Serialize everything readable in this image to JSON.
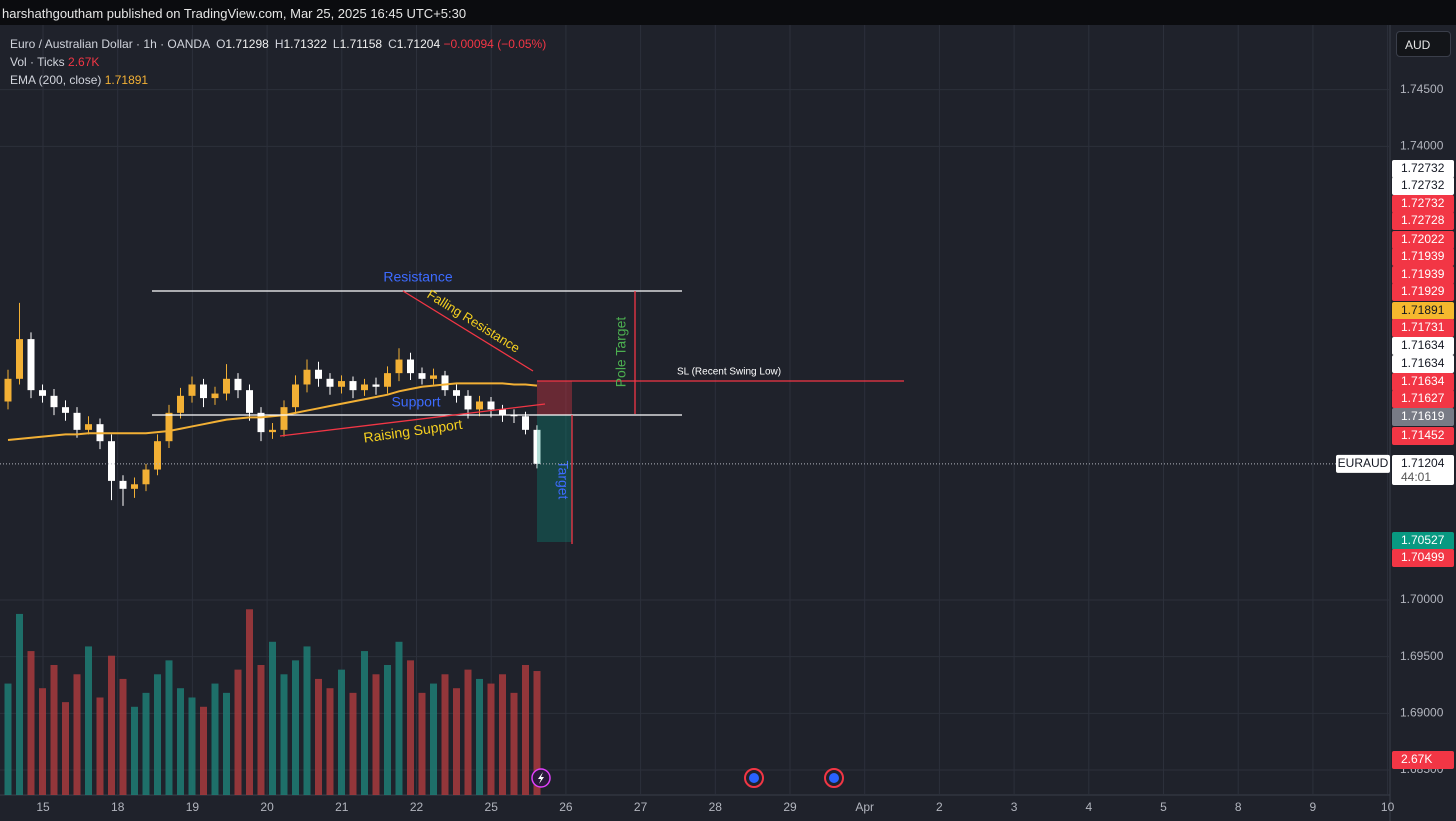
{
  "header": {
    "text": "harshathgoutham published on TradingView.com, Mar 25, 2025 16:45 UTC+5:30"
  },
  "currency_button": "AUD",
  "chart_data": {
    "type": "candlestick",
    "title": "Euro / Australian Dollar · 1h · OANDA",
    "ohlc_legend": [
      {
        "key": "O",
        "value": "1.71298"
      },
      {
        "key": "H",
        "value": "1.71322"
      },
      {
        "key": "L",
        "value": "1.71158"
      },
      {
        "key": "C",
        "value": "1.71204"
      }
    ],
    "change": "−0.00094 (−0.05%)",
    "symbol_tag": "EURAUD",
    "countdown": "44:01",
    "categories": [
      "15",
      "18",
      "19",
      "20",
      "21",
      "22",
      "25",
      "26",
      "27",
      "28",
      "29",
      "Apr",
      "2",
      "3",
      "4",
      "5",
      "8",
      "9",
      "10"
    ],
    "up_color": "#f2b035",
    "down_color": "#ffffff",
    "open": [
      1.7175,
      1.7195,
      1.723,
      1.7185,
      1.718,
      1.717,
      1.7165,
      1.715,
      1.7155,
      1.714,
      1.7105,
      1.7098,
      1.7102,
      1.7115,
      1.714,
      1.7165,
      1.718,
      1.719,
      1.7178,
      1.7182,
      1.7195,
      1.7185,
      1.7165,
      1.7148,
      1.715,
      1.717,
      1.719,
      1.7203,
      1.7195,
      1.7188,
      1.7193,
      1.7185,
      1.719,
      1.7188,
      1.72,
      1.7212,
      1.72,
      1.7195,
      1.7198,
      1.7185,
      1.718,
      1.7168,
      1.7175,
      1.7168,
      1.7163,
      1.7162,
      1.715
    ],
    "high": [
      1.7203,
      1.7262,
      1.7236,
      1.719,
      1.7186,
      1.7176,
      1.717,
      1.7162,
      1.716,
      1.7146,
      1.711,
      1.7108,
      1.712,
      1.7146,
      1.7172,
      1.7187,
      1.7197,
      1.7195,
      1.7188,
      1.7208,
      1.72,
      1.719,
      1.717,
      1.7156,
      1.7176,
      1.7198,
      1.7212,
      1.721,
      1.72,
      1.7198,
      1.7197,
      1.7195,
      1.7196,
      1.7206,
      1.7222,
      1.7218,
      1.7205,
      1.7204,
      1.7202,
      1.719,
      1.7185,
      1.718,
      1.7179,
      1.7172,
      1.7168,
      1.7166,
      1.7154
    ],
    "low": [
      1.7168,
      1.719,
      1.7178,
      1.7174,
      1.7163,
      1.7158,
      1.7143,
      1.7146,
      1.7133,
      1.7088,
      1.7083,
      1.709,
      1.7096,
      1.711,
      1.7134,
      1.716,
      1.7174,
      1.717,
      1.7172,
      1.7176,
      1.7178,
      1.7158,
      1.714,
      1.7142,
      1.7144,
      1.7164,
      1.7183,
      1.7188,
      1.7181,
      1.7182,
      1.7178,
      1.718,
      1.7181,
      1.7182,
      1.7193,
      1.7194,
      1.719,
      1.719,
      1.718,
      1.7174,
      1.716,
      1.7162,
      1.7161,
      1.7157,
      1.7156,
      1.7146,
      1.7116
    ],
    "close": [
      1.7195,
      1.723,
      1.7185,
      1.718,
      1.717,
      1.7165,
      1.715,
      1.7155,
      1.714,
      1.7105,
      1.7098,
      1.7102,
      1.7115,
      1.714,
      1.7165,
      1.718,
      1.719,
      1.7178,
      1.7182,
      1.7195,
      1.7185,
      1.7165,
      1.7148,
      1.715,
      1.717,
      1.719,
      1.7203,
      1.7195,
      1.7188,
      1.7193,
      1.7185,
      1.719,
      1.7188,
      1.72,
      1.7212,
      1.72,
      1.7195,
      1.7198,
      1.7185,
      1.718,
      1.7168,
      1.7175,
      1.7168,
      1.7163,
      1.7162,
      1.715,
      1.712
    ],
    "ema": {
      "name": "EMA (200, close)",
      "value_label": "1.71891",
      "color": "#f2b035",
      "values": [
        1.7141,
        1.7142,
        1.7143,
        1.7144,
        1.7145,
        1.7146,
        1.7146,
        1.7147,
        1.7147,
        1.7147,
        1.7147,
        1.7147,
        1.7147,
        1.7148,
        1.7149,
        1.7151,
        1.7153,
        1.7155,
        1.7157,
        1.7159,
        1.716,
        1.7161,
        1.7161,
        1.7162,
        1.7163,
        1.7165,
        1.7167,
        1.7169,
        1.7171,
        1.7173,
        1.7175,
        1.7177,
        1.7179,
        1.7181,
        1.7184,
        1.7186,
        1.7188,
        1.7189,
        1.719,
        1.7191,
        1.7191,
        1.7191,
        1.7191,
        1.7191,
        1.719,
        1.719,
        1.7189
      ]
    },
    "volume": {
      "name": "Vol · Ticks",
      "value_label": "2.67K",
      "up_color": "#1f7d74",
      "down_color": "#a8393d",
      "vlim": [
        0,
        4200
      ],
      "values": [
        2400,
        3900,
        3100,
        2300,
        2800,
        2000,
        2600,
        3200,
        2100,
        3000,
        2500,
        1900,
        2200,
        2600,
        2900,
        2300,
        2100,
        1900,
        2400,
        2200,
        2700,
        4000,
        2800,
        3300,
        2600,
        2900,
        3200,
        2500,
        2300,
        2700,
        2200,
        3100,
        2600,
        2800,
        3300,
        2900,
        2200,
        2400,
        2600,
        2300,
        2700,
        2500,
        2400,
        2600,
        2200,
        2800,
        2670
      ]
    },
    "ylim": [
      1.6828,
      1.7507
    ],
    "yticks": [
      {
        "value": 1.745,
        "label": "1.74500"
      },
      {
        "value": 1.74,
        "label": "1.74000"
      },
      {
        "value": 1.7,
        "label": "1.70000"
      },
      {
        "value": 1.695,
        "label": "1.69500"
      },
      {
        "value": 1.69,
        "label": "1.69000"
      },
      {
        "value": 1.685,
        "label": "1.68500"
      }
    ],
    "grid": true,
    "price_tags": [
      {
        "label": "1.72732",
        "color": "#ffffff"
      },
      {
        "label": "1.72732",
        "color": "#ffffff"
      },
      {
        "label": "1.72732",
        "color": "#f23645"
      },
      {
        "label": "1.72728",
        "color": "#f23645"
      },
      {
        "label": "1.72022",
        "color": "#f23645"
      },
      {
        "label": "1.71939",
        "color": "#f23645"
      },
      {
        "label": "1.71939",
        "color": "#f23645"
      },
      {
        "label": "1.71929",
        "color": "#f23645"
      },
      {
        "label": "1.71891",
        "color": "#f5b82e"
      },
      {
        "label": "1.71731",
        "color": "#f23645"
      },
      {
        "label": "1.71634",
        "color": "#ffffff"
      },
      {
        "label": "1.71634",
        "color": "#ffffff"
      },
      {
        "label": "1.71634",
        "color": "#f23645"
      },
      {
        "label": "1.71627",
        "color": "#f23645"
      },
      {
        "label": "1.71619",
        "color": "#787b86"
      },
      {
        "label": "1.71452",
        "color": "#f23645"
      },
      {
        "label": "1.71204",
        "color": "#ffffff"
      },
      {
        "label": "1.70527",
        "color": "#089981"
      },
      {
        "label": "1.70499",
        "color": "#f23645"
      },
      {
        "label": "2.67K",
        "color": "#f23645"
      }
    ],
    "annotations": {
      "resistance": "Resistance",
      "support": "Support",
      "falling_resistance": "Falling Resistance",
      "raising_support": "Raising Support",
      "pole_target": "Pole Target",
      "stop_loss": "SL (Recent Swing Low)",
      "target": "Target"
    }
  }
}
